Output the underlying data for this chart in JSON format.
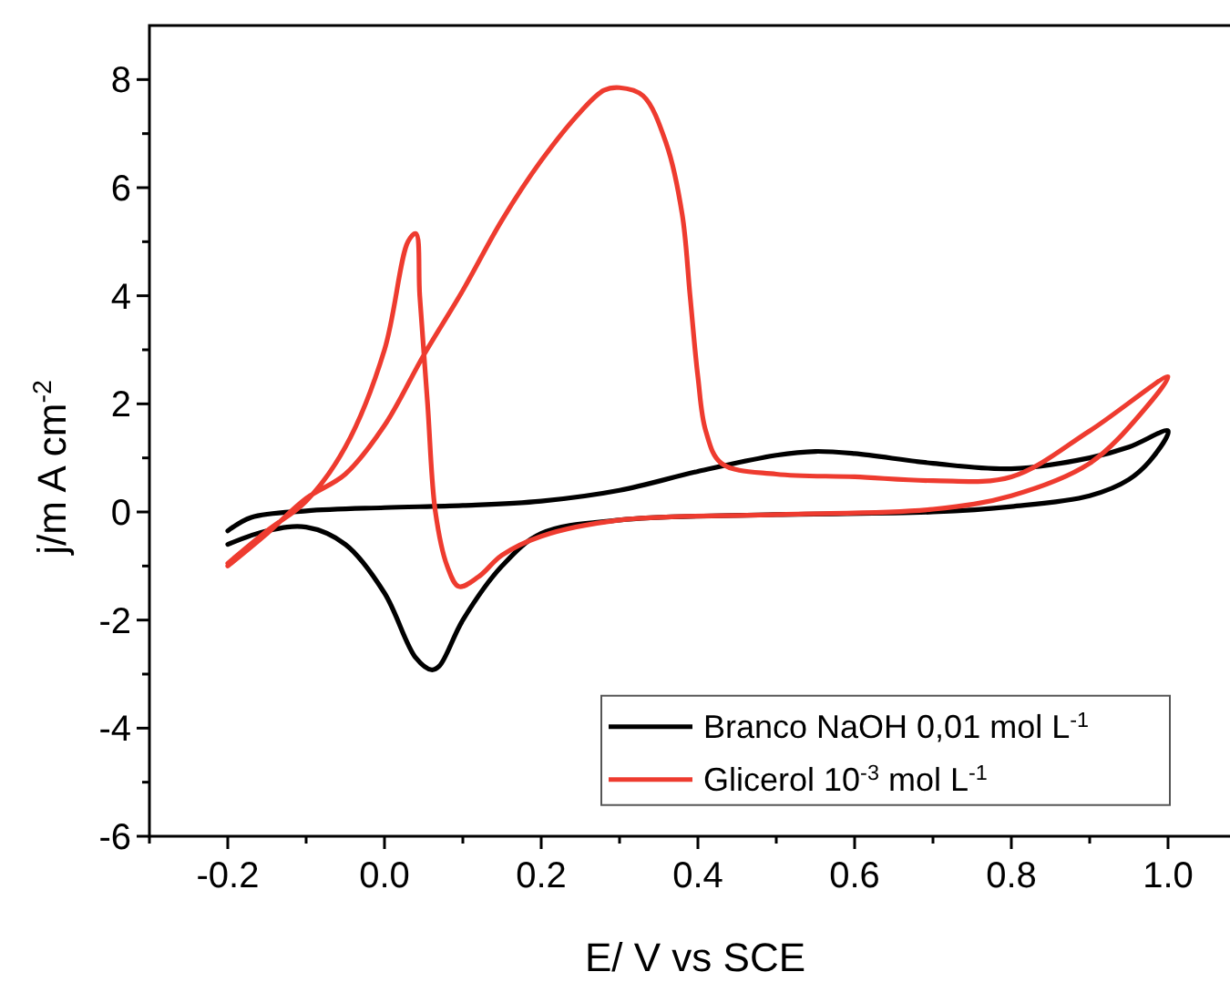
{
  "chart_data": {
    "type": "line",
    "xlabel": "E/ V vs SCE",
    "ylabel": "j/m A cm$^{-2}$",
    "xlim": [
      -0.3,
      1.1
    ],
    "ylim": [
      -6,
      9
    ],
    "xticks": [
      {
        "value": -0.3,
        "label": null
      },
      {
        "value": -0.2,
        "label": "-0.2"
      },
      {
        "value": -0.1,
        "label": null
      },
      {
        "value": 0,
        "label": "0.0"
      },
      {
        "value": 0.1,
        "label": null
      },
      {
        "value": 0.2,
        "label": "0.2"
      },
      {
        "value": 0.3,
        "label": null
      },
      {
        "value": 0.4,
        "label": "0.4"
      },
      {
        "value": 0.5,
        "label": null
      },
      {
        "value": 0.6,
        "label": "0.6"
      },
      {
        "value": 0.7,
        "label": null
      },
      {
        "value": 0.8,
        "label": "0.8"
      },
      {
        "value": 0.9,
        "label": null
      },
      {
        "value": 1.0,
        "label": "1.0"
      }
    ],
    "yticks": [
      -6,
      {
        "value": -5,
        "label": null
      },
      -4,
      {
        "value": -3,
        "label": null
      },
      -2,
      {
        "value": -1,
        "label": null
      },
      0,
      {
        "value": 1,
        "label": null
      },
      2,
      {
        "value": 3,
        "label": null
      },
      4,
      {
        "value": 5,
        "label": null
      },
      6,
      {
        "value": 7,
        "label": null
      },
      8
    ],
    "grid": false,
    "legend": "bottom right",
    "line_style": "solid",
    "marker": "none",
    "series": [
      {
        "name": "Branco NaOH 0,01 mol L$^{-1}$",
        "color": "#000000",
        "x": [
          -0.2,
          -0.17,
          -0.1,
          0,
          0.1,
          0.2,
          0.3,
          0.4,
          0.5,
          0.55,
          0.6,
          0.7,
          0.8,
          0.9,
          0.95,
          1.0,
          0.98,
          0.95,
          0.9,
          0.8,
          0.7,
          0.5,
          0.3,
          0.2,
          0.15,
          0.1,
          0.07,
          0.06,
          0.04,
          0.0,
          -0.05,
          -0.1,
          -0.15,
          -0.2
        ],
        "values": [
          -0.35,
          -0.1,
          0.02,
          0.08,
          0.12,
          0.2,
          0.4,
          0.75,
          1.05,
          1.12,
          1.08,
          0.9,
          0.8,
          1.0,
          1.2,
          1.5,
          1.0,
          0.6,
          0.3,
          0.1,
          0.0,
          -0.05,
          -0.15,
          -0.4,
          -1.0,
          -2.0,
          -2.85,
          -2.92,
          -2.7,
          -1.5,
          -0.6,
          -0.28,
          -0.35,
          -0.6
        ]
      },
      {
        "name": "Glicerol 10$^{-3}$ mol L$^{-1}$",
        "color": "#ee3b2f",
        "x": [
          -0.2,
          -0.15,
          -0.1,
          -0.05,
          0.0,
          0.05,
          0.1,
          0.15,
          0.2,
          0.25,
          0.28,
          0.3,
          0.33,
          0.36,
          0.38,
          0.39,
          0.4,
          0.41,
          0.43,
          0.5,
          0.6,
          0.7,
          0.8,
          0.9,
          1.0,
          0.97,
          0.9,
          0.8,
          0.7,
          0.5,
          0.3,
          0.2,
          0.15,
          0.12,
          0.095,
          0.08,
          0.065,
          0.055,
          0.045,
          0.04,
          0.03,
          0.0,
          -0.05,
          -0.1,
          -0.15,
          -0.2
        ],
        "values": [
          -1.0,
          -0.4,
          0.25,
          0.7,
          1.6,
          2.9,
          4.1,
          5.4,
          6.5,
          7.4,
          7.8,
          7.85,
          7.7,
          6.8,
          5.5,
          4.0,
          2.5,
          1.5,
          0.9,
          0.7,
          0.65,
          0.58,
          0.65,
          1.5,
          2.5,
          1.9,
          0.9,
          0.3,
          0.05,
          -0.05,
          -0.15,
          -0.45,
          -0.8,
          -1.2,
          -1.38,
          -1.0,
          0.0,
          2.0,
          4.0,
          5.15,
          5.0,
          3.0,
          1.2,
          0.2,
          -0.35,
          -0.95
        ]
      }
    ]
  }
}
